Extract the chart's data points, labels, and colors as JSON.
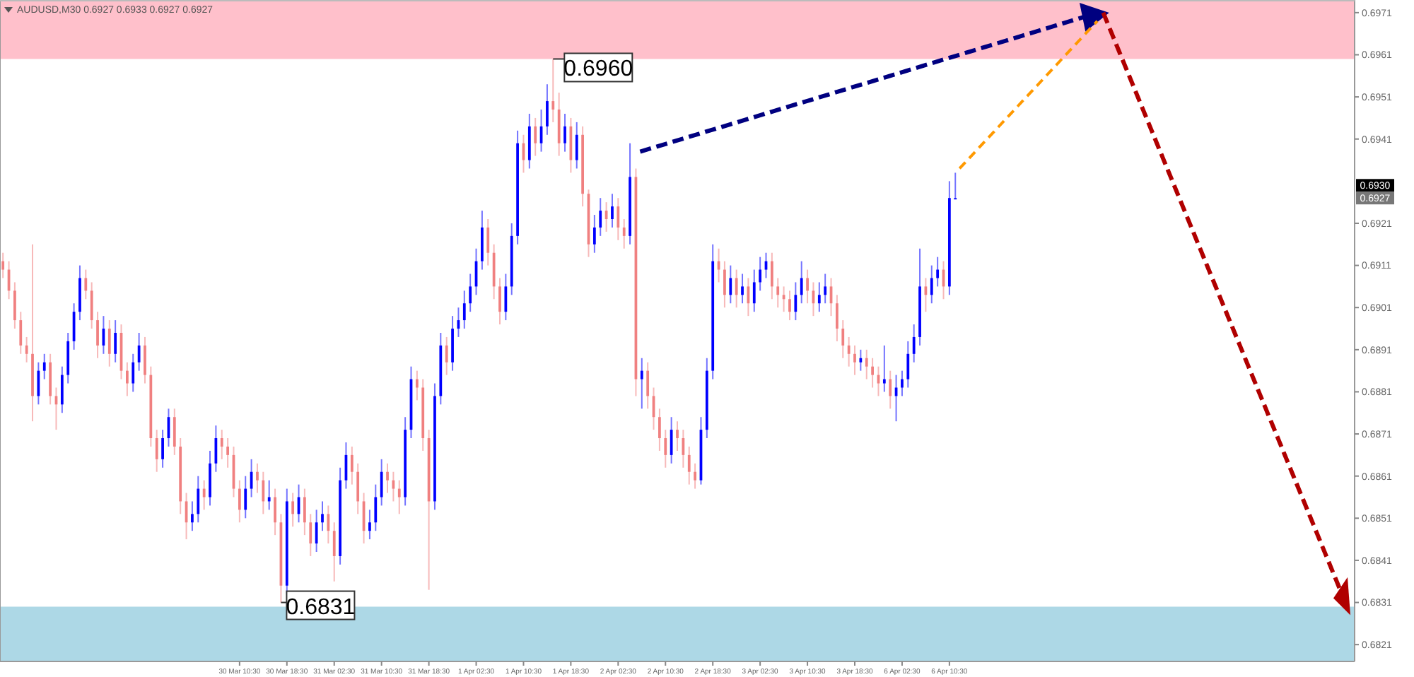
{
  "chart_data": {
    "type": "candlestick",
    "title": "AUDUSD,M30 0.6927 0.6933 0.6927 0.6927",
    "categories": [
      null,
      null,
      null,
      null,
      null,
      null,
      null,
      null,
      null,
      null,
      null,
      null,
      null,
      null,
      null,
      null,
      null,
      null,
      null,
      null,
      null,
      null,
      null,
      null,
      null,
      null,
      null,
      null,
      null,
      null,
      null,
      null,
      null,
      null,
      null,
      null,
      null,
      null,
      null,
      null,
      "30 Mar 10:30",
      null,
      null,
      null,
      null,
      null,
      null,
      null,
      "30 Mar 18:30",
      null,
      null,
      null,
      null,
      null,
      null,
      null,
      "31 Mar 02:30",
      null,
      null,
      null,
      null,
      null,
      null,
      null,
      "31 Mar 10:30",
      null,
      null,
      null,
      null,
      null,
      null,
      null,
      "31 Mar 18:30",
      null,
      null,
      null,
      null,
      null,
      null,
      null,
      "1 Apr 02:30",
      null,
      null,
      null,
      null,
      null,
      null,
      null,
      "1 Apr 10:30",
      null,
      null,
      null,
      null,
      null,
      null,
      null,
      "1 Apr 18:30",
      null,
      null,
      null,
      null,
      null,
      null,
      null,
      "2 Apr 02:30",
      null,
      null,
      null,
      null,
      null,
      null,
      null,
      "2 Apr 10:30",
      null,
      null,
      null,
      null,
      null,
      null,
      null,
      "2 Apr 18:30",
      null,
      null,
      null,
      null,
      null,
      null,
      null,
      "3 Apr 02:30",
      null,
      null,
      null,
      null,
      null,
      null,
      null,
      "3 Apr 10:30",
      null,
      null,
      null,
      null,
      null,
      null,
      null,
      "3 Apr 18:30",
      null,
      null,
      null,
      null,
      null,
      null,
      null,
      "6 Apr 02:30",
      null,
      null,
      null,
      null,
      null,
      null,
      null,
      "6 Apr 10:30",
      null,
      null,
      null,
      null,
      null,
      null,
      null,
      null,
      null,
      null,
      null,
      null,
      null,
      null,
      null,
      null,
      null,
      null,
      null,
      null,
      null,
      null,
      null,
      null,
      null,
      null,
      null,
      null,
      null,
      null,
      null,
      null,
      null,
      null,
      null,
      null,
      null,
      null,
      null,
      null,
      null,
      null,
      null,
      null,
      null,
      null,
      null,
      null,
      null,
      null,
      null,
      null,
      null,
      null,
      null,
      null,
      null,
      null,
      null,
      null,
      null,
      null,
      null,
      null,
      null,
      null,
      null,
      null
    ],
    "ohlc": [
      [
        0.6912,
        0.6914,
        0.6908,
        0.691
      ],
      [
        0.691,
        0.6912,
        0.6903,
        0.6905
      ],
      [
        0.6905,
        0.6907,
        0.6896,
        0.6898
      ],
      [
        0.6898,
        0.69,
        0.689,
        0.6892
      ],
      [
        0.6892,
        0.6894,
        0.6888,
        0.689
      ],
      [
        0.689,
        0.6916,
        0.6874,
        0.688
      ],
      [
        0.688,
        0.6888,
        0.6878,
        0.6886
      ],
      [
        0.6886,
        0.689,
        0.6884,
        0.6888
      ],
      [
        0.6888,
        0.689,
        0.6878,
        0.688
      ],
      [
        0.688,
        0.6882,
        0.6872,
        0.6878
      ],
      [
        0.6878,
        0.6887,
        0.6876,
        0.6885
      ],
      [
        0.6885,
        0.6895,
        0.6883,
        0.6893
      ],
      [
        0.6893,
        0.6902,
        0.6891,
        0.69
      ],
      [
        0.69,
        0.6911,
        0.6898,
        0.6908
      ],
      [
        0.6908,
        0.691,
        0.6903,
        0.6905
      ],
      [
        0.6905,
        0.6907,
        0.6896,
        0.6898
      ],
      [
        0.6898,
        0.69,
        0.6889,
        0.6892
      ],
      [
        0.6892,
        0.6899,
        0.689,
        0.6896
      ],
      [
        0.6896,
        0.6898,
        0.6887,
        0.689
      ],
      [
        0.689,
        0.6898,
        0.6888,
        0.6895
      ],
      [
        0.6895,
        0.6897,
        0.6884,
        0.6886
      ],
      [
        0.6886,
        0.6888,
        0.688,
        0.6883
      ],
      [
        0.6883,
        0.689,
        0.6881,
        0.6888
      ],
      [
        0.6888,
        0.6895,
        0.6886,
        0.6892
      ],
      [
        0.6892,
        0.6894,
        0.6883,
        0.6885
      ],
      [
        0.6885,
        0.6887,
        0.6868,
        0.687
      ],
      [
        0.687,
        0.6872,
        0.6862,
        0.6865
      ],
      [
        0.6865,
        0.6872,
        0.6863,
        0.687
      ],
      [
        0.687,
        0.6877,
        0.6868,
        0.6875
      ],
      [
        0.6875,
        0.6877,
        0.6866,
        0.6868
      ],
      [
        0.6868,
        0.687,
        0.6852,
        0.6855
      ],
      [
        0.6855,
        0.6857,
        0.6846,
        0.685
      ],
      [
        0.685,
        0.6855,
        0.6848,
        0.6852
      ],
      [
        0.6852,
        0.6861,
        0.685,
        0.6858
      ],
      [
        0.6858,
        0.686,
        0.6853,
        0.6856
      ],
      [
        0.6856,
        0.6867,
        0.6854,
        0.6864
      ],
      [
        0.6864,
        0.6873,
        0.6862,
        0.687
      ],
      [
        0.687,
        0.6872,
        0.6865,
        0.6868
      ],
      [
        0.6868,
        0.687,
        0.6863,
        0.6866
      ],
      [
        0.6866,
        0.6868,
        0.6856,
        0.6858
      ],
      [
        0.6858,
        0.686,
        0.685,
        0.6853
      ],
      [
        0.6853,
        0.6861,
        0.6851,
        0.6858
      ],
      [
        0.6858,
        0.6865,
        0.6856,
        0.6862
      ],
      [
        0.6862,
        0.6864,
        0.6857,
        0.686
      ],
      [
        0.686,
        0.6862,
        0.6852,
        0.6855
      ],
      [
        0.6855,
        0.686,
        0.6853,
        0.6856
      ],
      [
        0.6856,
        0.6858,
        0.6847,
        0.685
      ],
      [
        0.685,
        0.6852,
        0.6831,
        0.6835
      ],
      [
        0.6835,
        0.6858,
        0.6833,
        0.6855
      ],
      [
        0.6855,
        0.6857,
        0.6849,
        0.6852
      ],
      [
        0.6852,
        0.6859,
        0.685,
        0.6856
      ],
      [
        0.6856,
        0.6858,
        0.6847,
        0.685
      ],
      [
        0.685,
        0.6852,
        0.6842,
        0.6845
      ],
      [
        0.6845,
        0.6853,
        0.6843,
        0.685
      ],
      [
        0.685,
        0.6855,
        0.6848,
        0.6852
      ],
      [
        0.6852,
        0.6854,
        0.6845,
        0.6848
      ],
      [
        0.6848,
        0.685,
        0.6836,
        0.6842
      ],
      [
        0.6842,
        0.6863,
        0.684,
        0.686
      ],
      [
        0.686,
        0.6869,
        0.6858,
        0.6866
      ],
      [
        0.6866,
        0.6868,
        0.6859,
        0.6862
      ],
      [
        0.6862,
        0.6864,
        0.6852,
        0.6855
      ],
      [
        0.6855,
        0.6857,
        0.6845,
        0.6848
      ],
      [
        0.6848,
        0.6853,
        0.6846,
        0.685
      ],
      [
        0.685,
        0.6859,
        0.6848,
        0.6856
      ],
      [
        0.6856,
        0.6865,
        0.6854,
        0.6862
      ],
      [
        0.6862,
        0.6864,
        0.6857,
        0.686
      ],
      [
        0.686,
        0.6862,
        0.6855,
        0.6858
      ],
      [
        0.6858,
        0.686,
        0.6852,
        0.6856
      ],
      [
        0.6856,
        0.6875,
        0.6854,
        0.6872
      ],
      [
        0.6872,
        0.6887,
        0.687,
        0.6884
      ],
      [
        0.6884,
        0.6886,
        0.6879,
        0.6882
      ],
      [
        0.6882,
        0.6884,
        0.6867,
        0.687
      ],
      [
        0.687,
        0.6872,
        0.6834,
        0.6855
      ],
      [
        0.6855,
        0.6883,
        0.6853,
        0.688
      ],
      [
        0.688,
        0.6895,
        0.6878,
        0.6892
      ],
      [
        0.6892,
        0.6894,
        0.6885,
        0.6888
      ],
      [
        0.6888,
        0.6899,
        0.6886,
        0.6896
      ],
      [
        0.6896,
        0.6901,
        0.6894,
        0.6898
      ],
      [
        0.6898,
        0.6905,
        0.6896,
        0.6902
      ],
      [
        0.6902,
        0.6909,
        0.69,
        0.6906
      ],
      [
        0.6906,
        0.6915,
        0.6904,
        0.6912
      ],
      [
        0.6912,
        0.6924,
        0.691,
        0.692
      ],
      [
        0.692,
        0.6922,
        0.6911,
        0.6914
      ],
      [
        0.6914,
        0.6916,
        0.6903,
        0.6906
      ],
      [
        0.6906,
        0.6908,
        0.6897,
        0.69
      ],
      [
        0.69,
        0.6909,
        0.6898,
        0.6906
      ],
      [
        0.6906,
        0.6921,
        0.6904,
        0.6918
      ],
      [
        0.6918,
        0.6943,
        0.6916,
        0.694
      ],
      [
        0.694,
        0.6942,
        0.6933,
        0.6936
      ],
      [
        0.6936,
        0.6947,
        0.6934,
        0.6944
      ],
      [
        0.6944,
        0.6946,
        0.6937,
        0.694
      ],
      [
        0.694,
        0.6948,
        0.6938,
        0.6944
      ],
      [
        0.6944,
        0.6954,
        0.6942,
        0.695
      ],
      [
        0.695,
        0.696,
        0.6945,
        0.6948
      ],
      [
        0.6948,
        0.6952,
        0.6937,
        0.694
      ],
      [
        0.694,
        0.6947,
        0.6938,
        0.6944
      ],
      [
        0.6944,
        0.6946,
        0.6933,
        0.6936
      ],
      [
        0.6936,
        0.6945,
        0.6934,
        0.6942
      ],
      [
        0.6942,
        0.6944,
        0.6925,
        0.6928
      ],
      [
        0.6928,
        0.6929,
        0.6913,
        0.6916
      ],
      [
        0.6916,
        0.6923,
        0.6914,
        0.692
      ],
      [
        0.692,
        0.6927,
        0.6918,
        0.6924
      ],
      [
        0.6924,
        0.6926,
        0.6919,
        0.6922
      ],
      [
        0.6922,
        0.6928,
        0.692,
        0.6925
      ],
      [
        0.6925,
        0.6927,
        0.6917,
        0.692
      ],
      [
        0.692,
        0.6922,
        0.6915,
        0.6918
      ],
      [
        0.6918,
        0.694,
        0.6916,
        0.6932
      ],
      [
        0.6932,
        0.6934,
        0.688,
        0.6884
      ],
      [
        0.6884,
        0.6889,
        0.6877,
        0.6886
      ],
      [
        0.6886,
        0.6888,
        0.6877,
        0.688
      ],
      [
        0.688,
        0.6882,
        0.6872,
        0.6875
      ],
      [
        0.6875,
        0.6877,
        0.6867,
        0.687
      ],
      [
        0.687,
        0.6872,
        0.6863,
        0.6866
      ],
      [
        0.6866,
        0.6875,
        0.6864,
        0.6872
      ],
      [
        0.6872,
        0.6874,
        0.6867,
        0.687
      ],
      [
        0.687,
        0.6872,
        0.6863,
        0.6866
      ],
      [
        0.6866,
        0.6868,
        0.6859,
        0.6862
      ],
      [
        0.6862,
        0.6864,
        0.6858,
        0.686
      ],
      [
        0.686,
        0.6875,
        0.6859,
        0.6872
      ],
      [
        0.6872,
        0.6889,
        0.687,
        0.6886
      ],
      [
        0.6886,
        0.6916,
        0.6884,
        0.6912
      ],
      [
        0.6912,
        0.6915,
        0.6907,
        0.691
      ],
      [
        0.691,
        0.6912,
        0.6901,
        0.6904
      ],
      [
        0.6904,
        0.6911,
        0.6902,
        0.6908
      ],
      [
        0.6908,
        0.691,
        0.6901,
        0.6904
      ],
      [
        0.6904,
        0.6909,
        0.6902,
        0.6906
      ],
      [
        0.6906,
        0.6908,
        0.6899,
        0.6902
      ],
      [
        0.6902,
        0.691,
        0.69,
        0.6907
      ],
      [
        0.6907,
        0.6913,
        0.6905,
        0.691
      ],
      [
        0.691,
        0.6914,
        0.6908,
        0.6912
      ],
      [
        0.6912,
        0.6914,
        0.6903,
        0.6906
      ],
      [
        0.6906,
        0.6908,
        0.6901,
        0.6904
      ],
      [
        0.6904,
        0.6906,
        0.69,
        0.6903
      ],
      [
        0.6903,
        0.6905,
        0.6898,
        0.69
      ],
      [
        0.69,
        0.6907,
        0.6898,
        0.6904
      ],
      [
        0.6904,
        0.6912,
        0.6902,
        0.6908
      ],
      [
        0.6908,
        0.691,
        0.6902,
        0.6905
      ],
      [
        0.6905,
        0.6907,
        0.6899,
        0.6902
      ],
      [
        0.6902,
        0.6907,
        0.69,
        0.6904
      ],
      [
        0.6904,
        0.6909,
        0.6902,
        0.6906
      ],
      [
        0.6906,
        0.6908,
        0.6899,
        0.6902
      ],
      [
        0.6902,
        0.6904,
        0.6893,
        0.6896
      ],
      [
        0.6896,
        0.6898,
        0.6889,
        0.6892
      ],
      [
        0.6892,
        0.6894,
        0.6887,
        0.689
      ],
      [
        0.689,
        0.6892,
        0.6885,
        0.6888
      ],
      [
        0.6888,
        0.6891,
        0.6886,
        0.6889
      ],
      [
        0.6889,
        0.6891,
        0.6884,
        0.6887
      ],
      [
        0.6887,
        0.6889,
        0.6882,
        0.6885
      ],
      [
        0.6885,
        0.6887,
        0.688,
        0.6883
      ],
      [
        0.6883,
        0.6892,
        0.6881,
        0.6884
      ],
      [
        0.6884,
        0.6886,
        0.6877,
        0.688
      ],
      [
        0.688,
        0.6885,
        0.6874,
        0.6882
      ],
      [
        0.6882,
        0.6886,
        0.688,
        0.6884
      ],
      [
        0.6884,
        0.6893,
        0.6882,
        0.689
      ],
      [
        0.689,
        0.6897,
        0.6888,
        0.6894
      ],
      [
        0.6894,
        0.6915,
        0.6892,
        0.6906
      ],
      [
        0.6906,
        0.6908,
        0.69,
        0.6904
      ],
      [
        0.6904,
        0.6911,
        0.6902,
        0.6908
      ],
      [
        0.6908,
        0.6913,
        0.6906,
        0.691
      ],
      [
        0.691,
        0.6912,
        0.6903,
        0.6906
      ],
      [
        0.6906,
        0.6931,
        0.6904,
        0.6927
      ],
      [
        0.6927,
        0.6933,
        0.6927,
        0.6927
      ],
      null,
      null,
      null,
      null,
      null,
      null,
      null,
      null,
      null,
      null,
      null,
      null,
      null,
      null,
      null,
      null,
      null,
      null,
      null,
      null,
      null,
      null,
      null,
      null,
      null,
      null,
      null,
      null,
      null,
      null,
      null,
      null,
      null,
      null,
      null,
      null,
      null,
      null,
      null,
      null,
      null,
      null,
      null,
      null,
      null,
      null,
      null,
      null,
      null,
      null,
      null,
      null,
      null,
      null,
      null,
      null,
      null,
      null,
      null,
      null,
      null,
      null,
      null,
      null,
      null,
      null,
      null
    ],
    "ylim": [
      0.6817,
      0.6974
    ],
    "yticks": [
      0.6971,
      0.6961,
      0.6951,
      0.6941,
      0.6921,
      0.6911,
      0.6901,
      0.6891,
      0.6881,
      0.6871,
      0.6861,
      0.6851,
      0.6841,
      0.6831,
      0.6821
    ],
    "bands": [
      {
        "axis": "y",
        "from": 0.696,
        "to": 0.6974,
        "color": "#ffc0cb"
      },
      {
        "axis": "y",
        "from": 0.6817,
        "to": 0.683,
        "color": "#add8e6"
      }
    ],
    "annotations": [
      {
        "text": "0.6960",
        "y": 0.696
      },
      {
        "text": "0.6831",
        "y": 0.6831
      },
      {
        "text": "0.6930",
        "y": 0.693
      },
      {
        "text": "0.6927",
        "y": 0.6927
      }
    ],
    "grid": false
  }
}
